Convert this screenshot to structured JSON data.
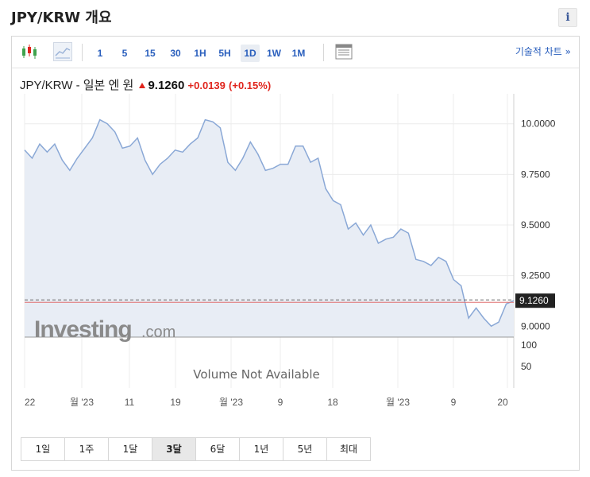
{
  "page_title": "JPY/KRW 개요",
  "info_button": "i",
  "toolbar": {
    "timeframes": [
      "1",
      "5",
      "15",
      "30",
      "1H",
      "5H",
      "1D",
      "1W",
      "1M"
    ],
    "active_timeframe": "1D",
    "technical_chart_link": "기술적 차트 »"
  },
  "header": {
    "name": "JPY/KRW - 일본 엔 원",
    "price": "9.1260",
    "change": "+0.0139",
    "change_pct": "(+0.15%)"
  },
  "periods": [
    "1일",
    "1주",
    "1달",
    "3달",
    "6달",
    "1년",
    "5년",
    "최대"
  ],
  "active_period": "3달",
  "volume_text": "Volume Not Available",
  "watermark": {
    "main": "Investing",
    "suffix": ".com"
  },
  "colors": {
    "line": "#8aa8d6",
    "fill": "#e8edf5",
    "up": "#e0241c",
    "link": "#2a5fbd",
    "last_price_box": "#222222"
  },
  "chart_data": {
    "type": "area",
    "y_ticks": [
      "10.0000",
      "9.7500",
      "9.5000",
      "9.2500",
      "9.0000"
    ],
    "ylim": [
      8.9462,
      10.0538
    ],
    "last_price_label": "9.1260",
    "last_price": 9.126,
    "volume_ticks": [
      "100",
      "50"
    ],
    "x_tick_labels": [
      "22",
      "월 '23",
      "11",
      "19",
      "월 '23",
      "9",
      "18",
      "월 '23",
      "9",
      "20"
    ],
    "values": [
      9.87,
      9.83,
      9.9,
      9.86,
      9.9,
      9.82,
      9.77,
      9.83,
      9.88,
      9.93,
      10.02,
      10.0,
      9.96,
      9.88,
      9.89,
      9.93,
      9.82,
      9.75,
      9.8,
      9.83,
      9.87,
      9.86,
      9.9,
      9.93,
      10.02,
      10.01,
      9.98,
      9.81,
      9.77,
      9.83,
      9.91,
      9.85,
      9.77,
      9.78,
      9.8,
      9.8,
      9.89,
      9.89,
      9.81,
      9.83,
      9.68,
      9.62,
      9.6,
      9.48,
      9.51,
      9.45,
      9.5,
      9.41,
      9.43,
      9.44,
      9.48,
      9.46,
      9.33,
      9.32,
      9.3,
      9.34,
      9.32,
      9.23,
      9.2,
      9.04,
      9.09,
      9.04,
      9.0,
      9.02,
      9.11,
      9.126
    ]
  }
}
